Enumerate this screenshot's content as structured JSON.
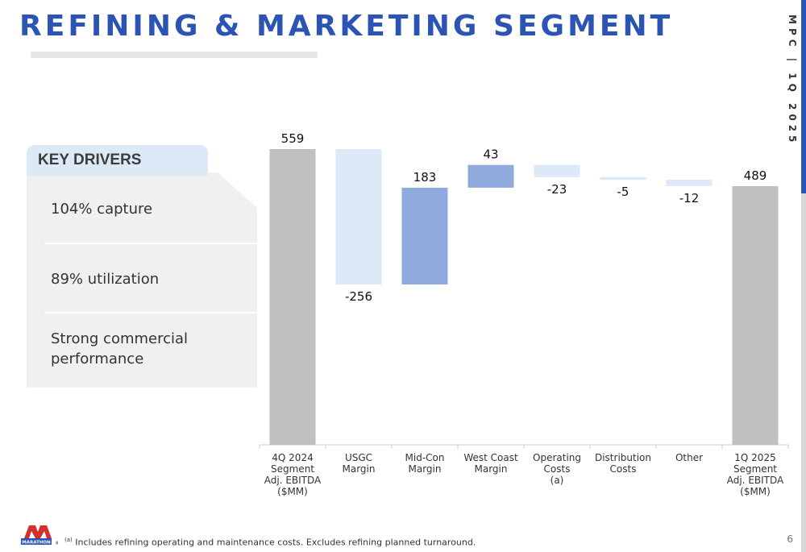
{
  "header": {
    "title": "REFINING & MARKETING SEGMENT",
    "side_tag": "MPC | 1Q 2025",
    "page_number": "6"
  },
  "key_drivers": {
    "title": "KEY DRIVERS",
    "items": [
      "104% capture",
      "89% utilization",
      "Strong commercial performance"
    ]
  },
  "footnote": {
    "marker": "(a)",
    "text": "Includes refining operating and maintenance costs. Excludes refining planned turnaround."
  },
  "logo": {
    "text": "MARATHON",
    "registered": "®"
  },
  "colors": {
    "title_blue": "#2b54b5",
    "total_bar": "#c0c0c0",
    "increase_bar": "#8fabdd",
    "decrease_bar": "#dde9f7"
  },
  "chart_data": {
    "type": "bar",
    "subtype": "waterfall",
    "categories": [
      "4Q 2024 Segment Adj. EBITDA ($MM)",
      "USGC Margin",
      "Mid-Con Margin",
      "West Coast Margin",
      "Operating Costs (a)",
      "Distribution Costs",
      "Other",
      "1Q 2025 Segment Adj. EBITDA ($MM)"
    ],
    "category_lines": [
      [
        "4Q 2024",
        "Segment",
        "Adj. EBITDA",
        "($MM)"
      ],
      [
        "USGC",
        "Margin"
      ],
      [
        "Mid-Con",
        "Margin"
      ],
      [
        "West Coast",
        "Margin"
      ],
      [
        "Operating",
        "Costs",
        "(a)"
      ],
      [
        "Distribution",
        "Costs"
      ],
      [
        "Other"
      ],
      [
        "1Q 2025",
        "Segment",
        "Adj. EBITDA",
        "($MM)"
      ]
    ],
    "values": [
      559,
      -256,
      183,
      43,
      -23,
      -5,
      -12,
      489
    ],
    "value_labels": [
      "559",
      "-256",
      "183",
      "43",
      "-23",
      "-5",
      "-12",
      "489"
    ],
    "kinds": [
      "total",
      "delta",
      "delta",
      "delta",
      "delta",
      "delta",
      "delta",
      "total"
    ],
    "ylim": [
      0,
      559
    ],
    "grid": false,
    "legend": "none"
  }
}
